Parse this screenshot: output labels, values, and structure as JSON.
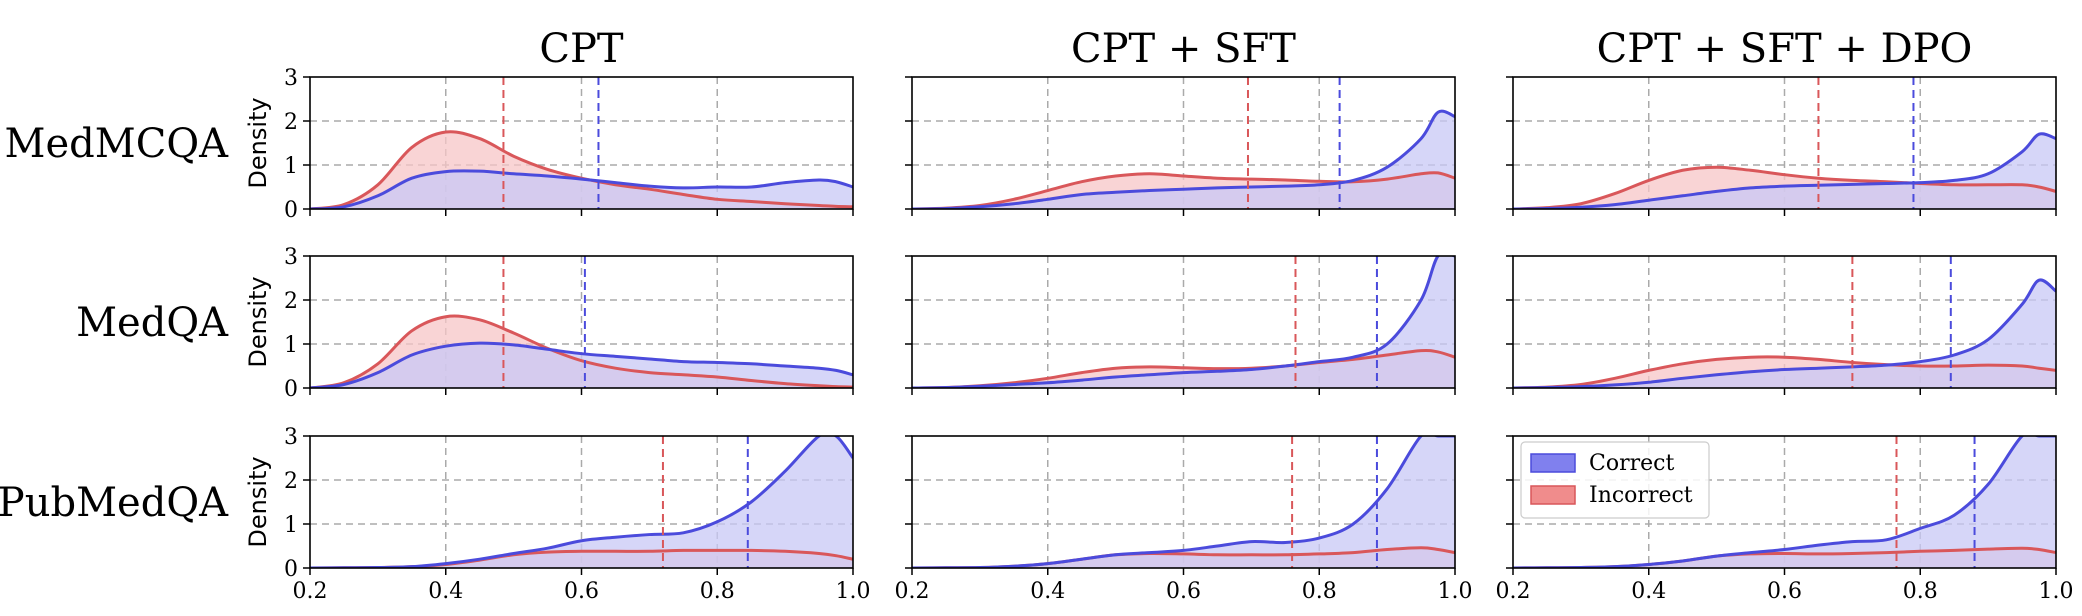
{
  "chart_data": {
    "type": "area",
    "column_titles": [
      "CPT",
      "CPT + SFT",
      "CPT + SFT + DPO"
    ],
    "row_titles": [
      "MedMCQA",
      "MedQA",
      "PubMedQA"
    ],
    "ylabel": "Density",
    "xlim": [
      0.2,
      1.0
    ],
    "ylim": [
      0,
      3
    ],
    "x_ticks": [
      "0.2",
      "0.4",
      "0.6",
      "0.8",
      "1.0"
    ],
    "y_ticks": [
      "0",
      "1",
      "2",
      "3"
    ],
    "grid": true,
    "legend": {
      "position": "top-left",
      "panel": "PubMedQA / CPT + SFT + DPO",
      "entries": [
        "Correct",
        "Incorrect"
      ]
    },
    "colors": {
      "correct_line": "#4b4bdc",
      "correct_fill": "#c8c8f6",
      "incorrect_line": "#d9575a",
      "incorrect_fill": "#f7c6c7",
      "correct_legend_fill": "#8080ee",
      "incorrect_legend_fill": "#f08c8c",
      "grid": "#aaaaaa"
    },
    "x": [
      0.2,
      0.25,
      0.3,
      0.35,
      0.4,
      0.45,
      0.5,
      0.55,
      0.6,
      0.65,
      0.7,
      0.75,
      0.8,
      0.85,
      0.9,
      0.95,
      0.975,
      1.0
    ],
    "panels": [
      [
        {
          "correct": [
            0,
            0.05,
            0.3,
            0.7,
            0.85,
            0.86,
            0.8,
            0.75,
            0.68,
            0.6,
            0.52,
            0.48,
            0.5,
            0.5,
            0.6,
            0.66,
            0.62,
            0.5
          ],
          "incorrect": [
            0,
            0.1,
            0.55,
            1.4,
            1.75,
            1.6,
            1.2,
            0.9,
            0.7,
            0.55,
            0.45,
            0.33,
            0.22,
            0.17,
            0.12,
            0.08,
            0.06,
            0.05
          ],
          "mean_correct": 0.625,
          "mean_incorrect": 0.485
        },
        {
          "correct": [
            0,
            0.01,
            0.05,
            0.12,
            0.22,
            0.33,
            0.38,
            0.42,
            0.45,
            0.48,
            0.5,
            0.52,
            0.55,
            0.65,
            0.95,
            1.6,
            2.2,
            2.1
          ],
          "incorrect": [
            0,
            0.02,
            0.08,
            0.22,
            0.42,
            0.62,
            0.75,
            0.8,
            0.75,
            0.7,
            0.68,
            0.66,
            0.63,
            0.62,
            0.68,
            0.8,
            0.82,
            0.7
          ],
          "mean_correct": 0.83,
          "mean_incorrect": 0.695
        },
        {
          "correct": [
            0,
            0.01,
            0.04,
            0.1,
            0.2,
            0.3,
            0.4,
            0.48,
            0.52,
            0.54,
            0.56,
            0.58,
            0.6,
            0.65,
            0.8,
            1.3,
            1.7,
            1.6
          ],
          "incorrect": [
            0,
            0.03,
            0.12,
            0.35,
            0.65,
            0.88,
            0.95,
            0.88,
            0.78,
            0.7,
            0.65,
            0.62,
            0.58,
            0.55,
            0.55,
            0.55,
            0.5,
            0.4
          ],
          "mean_correct": 0.79,
          "mean_incorrect": 0.65
        }
      ],
      [
        {
          "correct": [
            0,
            0.08,
            0.35,
            0.75,
            0.95,
            1.02,
            0.98,
            0.88,
            0.78,
            0.72,
            0.66,
            0.6,
            0.58,
            0.55,
            0.5,
            0.45,
            0.4,
            0.3
          ],
          "incorrect": [
            0,
            0.12,
            0.55,
            1.3,
            1.62,
            1.55,
            1.25,
            0.9,
            0.62,
            0.45,
            0.35,
            0.3,
            0.25,
            0.17,
            0.1,
            0.05,
            0.03,
            0.02
          ],
          "mean_correct": 0.605,
          "mean_incorrect": 0.485
        },
        {
          "correct": [
            0,
            0.01,
            0.04,
            0.08,
            0.12,
            0.18,
            0.25,
            0.3,
            0.35,
            0.38,
            0.42,
            0.5,
            0.6,
            0.7,
            1.0,
            2.0,
            3.0,
            3.0
          ],
          "incorrect": [
            0,
            0.01,
            0.05,
            0.12,
            0.22,
            0.35,
            0.45,
            0.48,
            0.46,
            0.44,
            0.45,
            0.5,
            0.58,
            0.65,
            0.75,
            0.85,
            0.82,
            0.7
          ],
          "mean_correct": 0.885,
          "mean_incorrect": 0.765
        },
        {
          "correct": [
            0,
            0.01,
            0.03,
            0.07,
            0.13,
            0.22,
            0.3,
            0.37,
            0.42,
            0.45,
            0.48,
            0.52,
            0.6,
            0.75,
            1.1,
            1.9,
            2.45,
            2.2
          ],
          "incorrect": [
            0,
            0.02,
            0.08,
            0.22,
            0.4,
            0.55,
            0.65,
            0.7,
            0.7,
            0.65,
            0.58,
            0.53,
            0.5,
            0.5,
            0.52,
            0.5,
            0.45,
            0.4
          ],
          "mean_correct": 0.845,
          "mean_incorrect": 0.7
        }
      ],
      [
        {
          "correct": [
            0,
            0.005,
            0.01,
            0.03,
            0.1,
            0.2,
            0.33,
            0.45,
            0.62,
            0.7,
            0.76,
            0.8,
            1.05,
            1.5,
            2.2,
            3.0,
            3.0,
            2.5
          ],
          "incorrect": [
            0,
            0.005,
            0.01,
            0.03,
            0.08,
            0.18,
            0.3,
            0.36,
            0.38,
            0.38,
            0.38,
            0.4,
            0.4,
            0.4,
            0.38,
            0.33,
            0.28,
            0.2
          ],
          "mean_correct": 0.845,
          "mean_incorrect": 0.72
        },
        {
          "correct": [
            0,
            0.005,
            0.01,
            0.04,
            0.1,
            0.2,
            0.3,
            0.35,
            0.4,
            0.5,
            0.6,
            0.58,
            0.68,
            1.0,
            1.8,
            3.0,
            3.0,
            3.0
          ],
          "incorrect": [
            0,
            0.005,
            0.01,
            0.04,
            0.1,
            0.2,
            0.3,
            0.33,
            0.32,
            0.3,
            0.3,
            0.3,
            0.32,
            0.35,
            0.42,
            0.46,
            0.42,
            0.35
          ],
          "mean_correct": 0.885,
          "mean_incorrect": 0.76
        },
        {
          "correct": [
            0,
            0.005,
            0.01,
            0.03,
            0.08,
            0.16,
            0.27,
            0.35,
            0.42,
            0.52,
            0.6,
            0.64,
            0.9,
            1.2,
            1.9,
            3.0,
            3.0,
            3.0
          ],
          "incorrect": [
            0,
            0.005,
            0.01,
            0.03,
            0.08,
            0.16,
            0.27,
            0.32,
            0.33,
            0.32,
            0.33,
            0.35,
            0.38,
            0.4,
            0.43,
            0.45,
            0.42,
            0.35
          ],
          "mean_correct": 0.88,
          "mean_incorrect": 0.765
        }
      ]
    ]
  }
}
